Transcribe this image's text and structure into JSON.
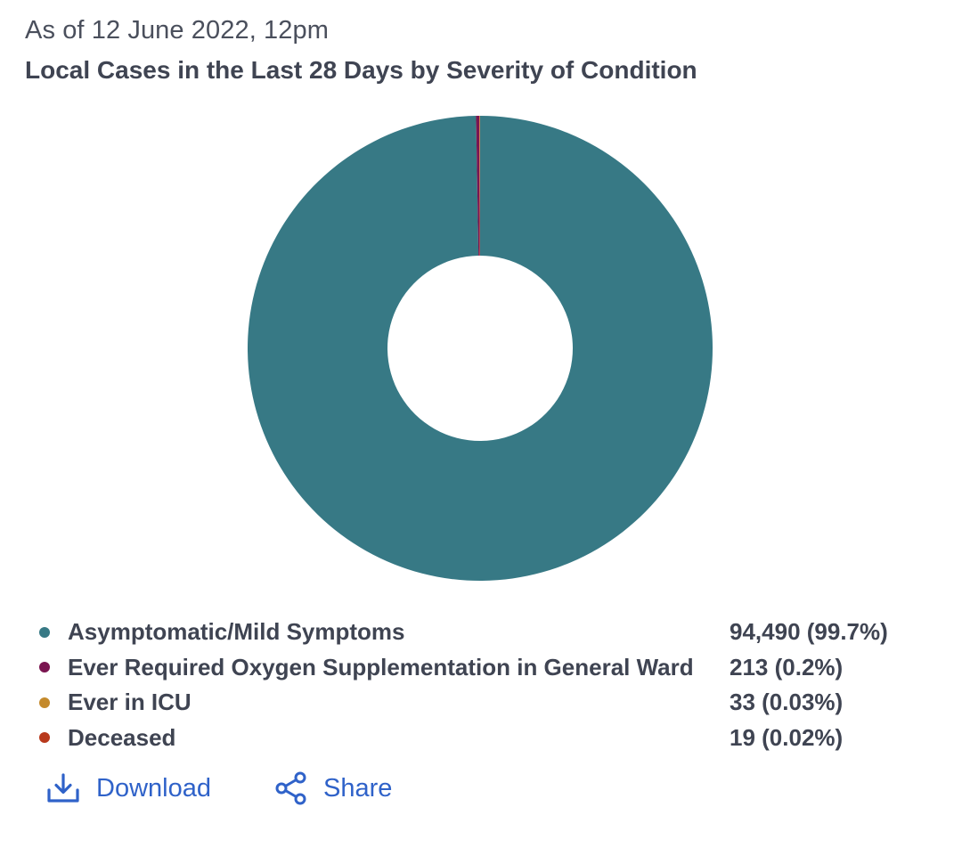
{
  "header": {
    "as_of": "As of 12 June 2022, 12pm",
    "title": "Local Cases in the Last 28 Days by Severity of Condition"
  },
  "chart_data": {
    "type": "pie",
    "variant": "donut",
    "title": "Local Cases in the Last 28 Days by Severity of Condition",
    "slices": [
      {
        "label": "Asymptomatic/Mild Symptoms",
        "value": 94490,
        "display": "94,490 (99.7%)",
        "color": "#377985"
      },
      {
        "label": "Ever Required Oxygen Supplementation in General Ward",
        "value": 213,
        "display": "213 (0.2%)",
        "color": "#7a1550"
      },
      {
        "label": "Ever in ICU",
        "value": 33,
        "display": "33 (0.03%)",
        "color": "#c48a2c"
      },
      {
        "label": "Deceased",
        "value": 19,
        "display": "19 (0.02%)",
        "color": "#b8391c"
      }
    ],
    "legend_position": "bottom"
  },
  "actions": {
    "download_label": "Download",
    "share_label": "Share",
    "link_color": "#2f62c9"
  }
}
